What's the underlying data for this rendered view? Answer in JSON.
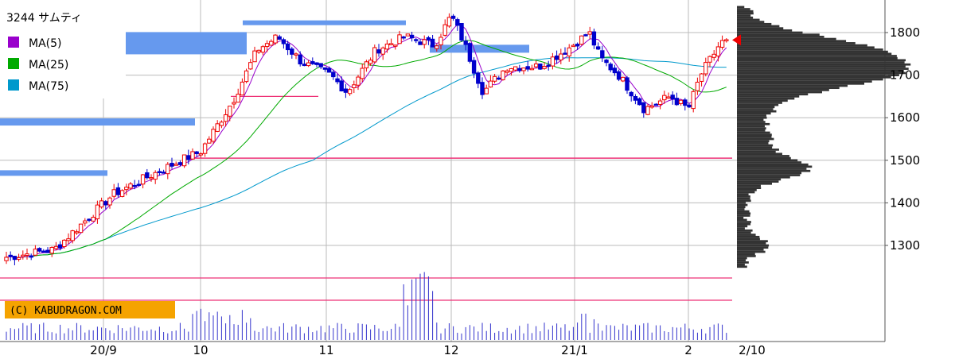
{
  "chart_data": {
    "type": "candlestick",
    "title": "3244 サムティ",
    "credit": "(C) KABUDRAGON.COM",
    "legend": [
      {
        "label": "MA(5)",
        "color": "#9900cc"
      },
      {
        "label": "MA(25)",
        "color": "#00aa00"
      },
      {
        "label": "MA(75)",
        "color": "#0099cc"
      }
    ],
    "y_axis": {
      "position": "right",
      "ticks": [
        1300,
        1400,
        1500,
        1600,
        1700,
        1800
      ],
      "ylim": [
        1180,
        1880
      ]
    },
    "x_axis": {
      "ticks": [
        "20/9",
        "10",
        "11",
        "12",
        "21/1",
        "2",
        "2/10"
      ]
    },
    "grid": true,
    "colors": {
      "up": "#ee0000",
      "down": "#0000cc",
      "volume": "#3333cc",
      "hline": "#ee3377",
      "vprofile": "#333333",
      "resistance": "#6699ee"
    },
    "horizontal_lines": [
      1505,
      1650
    ],
    "resistance_zones": [
      {
        "price": 1823,
        "from": "20/10",
        "to": "20/11"
      },
      {
        "price": 1775,
        "from": "20/8",
        "to": "20/10"
      },
      {
        "price": 1762,
        "from": "20/12",
        "to": "21/1"
      },
      {
        "price": 1590,
        "from": "20/8",
        "to": "20/10"
      },
      {
        "price": 1470,
        "from": "20/8",
        "to": "20/9"
      }
    ],
    "last_price": 1777,
    "close_anchors": [
      {
        "date": "20/8/13",
        "close": 1265
      },
      {
        "date": "20/8/24",
        "close": 1290
      },
      {
        "date": "20/9/4",
        "close": 1420
      },
      {
        "date": "20/9/17",
        "close": 1470
      },
      {
        "date": "20/9/25",
        "close": 1500
      },
      {
        "date": "20/10/1",
        "close": 1520
      },
      {
        "date": "20/10/9",
        "close": 1640
      },
      {
        "date": "20/10/15",
        "close": 1760
      },
      {
        "date": "20/10/20",
        "close": 1790
      },
      {
        "date": "20/10/26",
        "close": 1730
      },
      {
        "date": "20/11/2",
        "close": 1700
      },
      {
        "date": "20/11/6",
        "close": 1660
      },
      {
        "date": "20/11/13",
        "close": 1760
      },
      {
        "date": "20/11/20",
        "close": 1790
      },
      {
        "date": "20/11/27",
        "close": 1770
      },
      {
        "date": "20/12/1",
        "close": 1840
      },
      {
        "date": "20/12/4",
        "close": 1780
      },
      {
        "date": "20/12/9",
        "close": 1660
      },
      {
        "date": "20/12/15",
        "close": 1720
      },
      {
        "date": "20/12/23",
        "close": 1720
      },
      {
        "date": "20/12/30",
        "close": 1760
      },
      {
        "date": "21/1/5",
        "close": 1800
      },
      {
        "date": "21/1/8",
        "close": 1740
      },
      {
        "date": "21/1/13",
        "close": 1700
      },
      {
        "date": "21/1/20",
        "close": 1620
      },
      {
        "date": "21/1/27",
        "close": 1650
      },
      {
        "date": "21/2/1",
        "close": 1620
      },
      {
        "date": "21/2/4",
        "close": 1700
      },
      {
        "date": "21/2/9",
        "close": 1777
      }
    ]
  }
}
